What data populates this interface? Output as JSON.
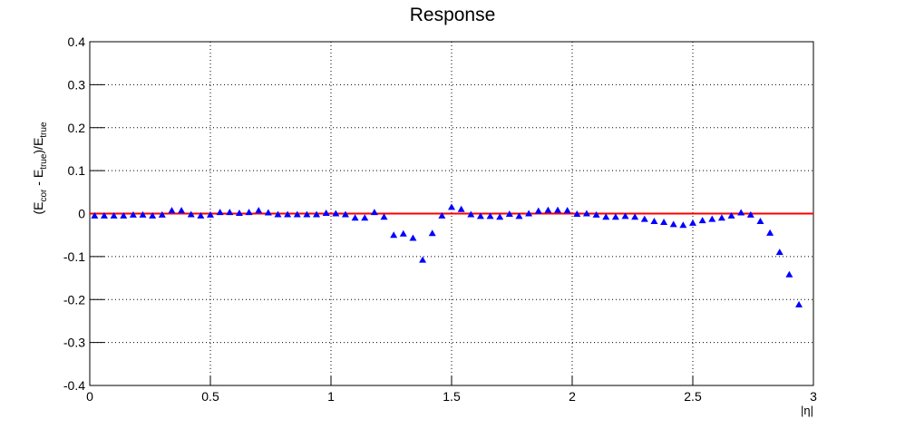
{
  "chart_data": {
    "type": "scatter",
    "title": "Response",
    "xlabel": "|η|",
    "ylabel_parts": [
      "(E",
      "cor",
      " - E",
      "true",
      ")/E",
      "true"
    ],
    "marker": "triangle",
    "color": "#0000ff",
    "reference_line": {
      "value": 0,
      "color": "#ff0000"
    },
    "grid": true,
    "xlim": [
      0,
      3
    ],
    "ylim": [
      -0.4,
      0.4
    ],
    "xticks": [
      0,
      0.5,
      1,
      1.5,
      2,
      2.5,
      3
    ],
    "yticks": [
      -0.4,
      -0.3,
      -0.2,
      -0.1,
      0,
      0.1,
      0.2,
      0.3,
      0.4
    ],
    "x": [
      0.02,
      0.06,
      0.1,
      0.14,
      0.18,
      0.22,
      0.26,
      0.3,
      0.34,
      0.38,
      0.42,
      0.46,
      0.5,
      0.54,
      0.58,
      0.62,
      0.66,
      0.7,
      0.74,
      0.78,
      0.82,
      0.86,
      0.9,
      0.94,
      0.98,
      1.02,
      1.06,
      1.1,
      1.14,
      1.18,
      1.22,
      1.26,
      1.3,
      1.34,
      1.38,
      1.42,
      1.46,
      1.5,
      1.54,
      1.58,
      1.62,
      1.66,
      1.7,
      1.74,
      1.78,
      1.82,
      1.86,
      1.9,
      1.94,
      1.98,
      2.02,
      2.06,
      2.1,
      2.14,
      2.18,
      2.22,
      2.26,
      2.3,
      2.34,
      2.38,
      2.42,
      2.46,
      2.5,
      2.54,
      2.58,
      2.62,
      2.66,
      2.7,
      2.74,
      2.78,
      2.82,
      2.86,
      2.9,
      2.94
    ],
    "values": [
      -0.005,
      -0.005,
      -0.005,
      -0.005,
      -0.003,
      -0.003,
      -0.005,
      -0.003,
      0.007,
      0.007,
      -0.002,
      -0.005,
      -0.003,
      0.003,
      0.003,
      0.001,
      0.003,
      0.007,
      0.002,
      -0.002,
      -0.002,
      -0.002,
      -0.002,
      -0.002,
      0.001,
      0.0,
      -0.002,
      -0.01,
      -0.01,
      0.003,
      -0.008,
      -0.05,
      -0.047,
      -0.057,
      -0.108,
      -0.046,
      -0.005,
      0.015,
      0.01,
      -0.002,
      -0.006,
      -0.006,
      -0.008,
      -0.001,
      -0.006,
      0.0,
      0.006,
      0.008,
      0.008,
      0.007,
      -0.001,
      0.0,
      -0.003,
      -0.008,
      -0.008,
      -0.006,
      -0.008,
      -0.013,
      -0.018,
      -0.02,
      -0.025,
      -0.027,
      -0.022,
      -0.016,
      -0.013,
      -0.01,
      -0.005,
      0.002,
      -0.003,
      -0.018,
      -0.045,
      -0.09,
      -0.142,
      -0.212
    ]
  }
}
